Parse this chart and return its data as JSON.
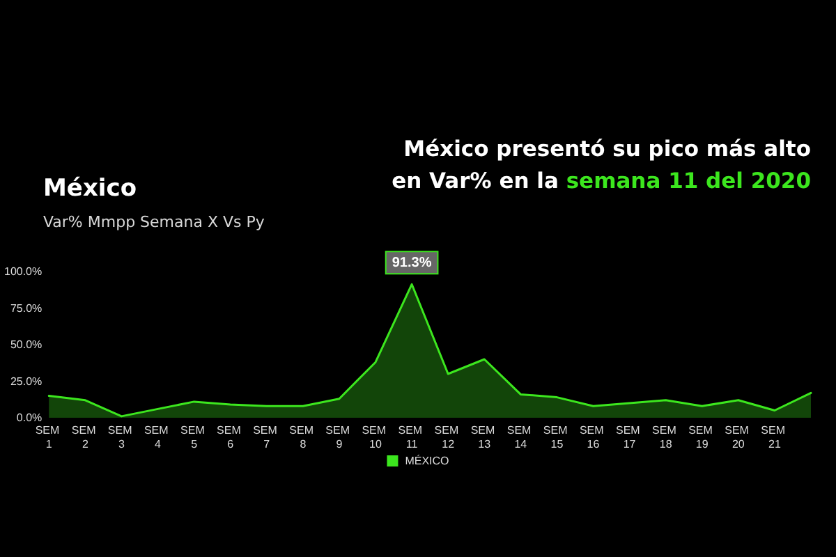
{
  "chart_data": {
    "type": "area",
    "title": "México",
    "subtitle": "Var% Mmpp Semana X Vs Py",
    "annotations": [
      "México presentó su pico más alto",
      "en Var% en la",
      "semana 11 del 2020"
    ],
    "categories": [
      "SEM 1",
      "SEM 2",
      "SEM 3",
      "SEM 4",
      "SEM 5",
      "SEM 6",
      "SEM 7",
      "SEM 8",
      "SEM 9",
      "SEM 10",
      "SEM 11",
      "SEM 12",
      "SEM 13",
      "SEM 14",
      "SEM 15",
      "SEM 16",
      "SEM 17",
      "SEM 18",
      "SEM 19",
      "SEM 20",
      "SEM 21",
      null
    ],
    "series": [
      {
        "name": "MÉXICO",
        "color": "#3ce61e",
        "values": [
          15,
          12,
          1,
          6,
          11,
          9,
          8,
          8,
          13,
          38,
          91.3,
          30,
          40,
          16,
          14,
          8,
          10,
          12,
          8,
          12,
          5,
          17
        ],
        "value_labels": [
          null,
          null,
          null,
          null,
          null,
          null,
          null,
          null,
          null,
          null,
          "91.3%",
          null,
          null,
          null,
          null,
          null,
          null,
          null,
          null,
          null,
          null,
          null
        ]
      }
    ],
    "ylim": [
      0,
      100
    ],
    "yticks": [
      {
        "value": 0,
        "label": "0.0%"
      },
      {
        "value": 25,
        "label": "25.0%"
      },
      {
        "value": 50,
        "label": "50.0%"
      },
      {
        "value": 75,
        "label": "75.0%"
      },
      {
        "value": 100,
        "label": "100.0%"
      }
    ],
    "grid": false,
    "legend": "bottom",
    "marker": "none",
    "line_style": "solid"
  }
}
